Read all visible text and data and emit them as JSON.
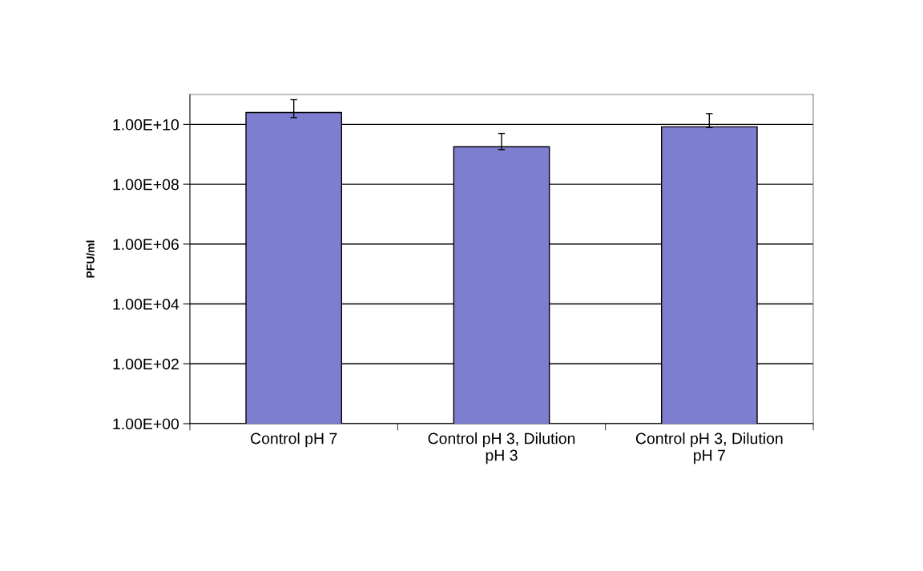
{
  "chart_data": {
    "type": "bar",
    "ylabel": "PFU/ml",
    "categories": [
      "Control pH 7",
      "Control pH 3, Dilution pH 3",
      "Control pH 3, Dilution pH 7"
    ],
    "values": [
      25000000000.0,
      1800000000.0,
      8300000000.0
    ],
    "errors": [
      [
        17000000000.0,
        67000000000.0
      ],
      [
        1450000000.0,
        5000000000.0
      ],
      [
        7900000000.0,
        23000000000.0
      ]
    ],
    "color": "#7e7ed0",
    "log": "y",
    "ylim": [
      1,
      100000000000.0
    ],
    "yticks": [
      {
        "value": 1,
        "label": "1.00E+00"
      },
      {
        "value": 100,
        "label": "1.00E+02"
      },
      {
        "value": 10000,
        "label": "1.00E+04"
      },
      {
        "value": 1000000,
        "label": "1.00E+06"
      },
      {
        "value": 100000000,
        "label": "1.00E+08"
      },
      {
        "value": 10000000000,
        "label": "1.00E+10"
      }
    ],
    "grid": "y"
  }
}
